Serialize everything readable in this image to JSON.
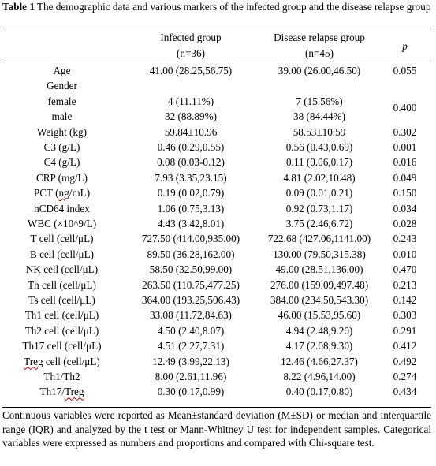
{
  "table": {
    "number": "Table 1",
    "title": "The demographic data and various markers of the infected group and the disease relapse group",
    "headers": {
      "col1_line1": "Infected group",
      "col1_line2": "(n=36)",
      "col2_line1": "Disease relapse group",
      "col2_line2": "(n=45)",
      "p": "p"
    },
    "rows": [
      {
        "label": "Age",
        "infected": "41.00 (28.25,56.75)",
        "relapse": "39.00 (26.00,46.50)",
        "p": "0.055"
      },
      {
        "label": "Gender",
        "infected": "",
        "relapse": "",
        "p": ""
      },
      {
        "label": "female",
        "infected": "4 (11.11%)",
        "relapse": "7 (15.56%)",
        "p": ""
      },
      {
        "label": "male",
        "infected": "32 (88.89%)",
        "relapse": "38 (84.44%)",
        "p": ""
      },
      {
        "label": "Weight (kg)",
        "infected": "59.84±10.96",
        "relapse": "58.53±10.59",
        "p": "0.302"
      },
      {
        "label": "C3 (g/L)",
        "infected": "0.46 (0.29,0.55)",
        "relapse": "0.56 (0.43,0.69)",
        "p": "0.001"
      },
      {
        "label": "C4 (g/L)",
        "infected": "0.08 (0.03-0.12)",
        "relapse": "0.11 (0.06,0.17)",
        "p": "0.016"
      },
      {
        "label": "CRP (mg/L)",
        "infected": "7.93 (3.35,23.15)",
        "relapse": "4.81 (2.02,10.48)",
        "p": "0.049"
      },
      {
        "label": "PCT (ng/mL)",
        "infected": "0.19 (0.02,0.79)",
        "relapse": "0.09 (0.01,0.21)",
        "p": "0.150"
      },
      {
        "label": "nCD64 index",
        "infected": "1.06 (0.75,3.13)",
        "relapse": "0.92 (0.73,1.17)",
        "p": "0.034"
      },
      {
        "label": "WBC (×10^9/L)",
        "infected": "4.43 (3.42,8.01)",
        "relapse": "3.75 (2.46,6.72)",
        "p": "0.028"
      },
      {
        "label": "T cell (cell/μL)",
        "infected": "727.50 (414.00,935.00)",
        "relapse": "722.68 (427.06,1141.00)",
        "p": "0.243"
      },
      {
        "label": "B cell (cell/μL)",
        "infected": "89.50 (36.28,162.00)",
        "relapse": "130.00 (79.50,315.38)",
        "p": "0.010"
      },
      {
        "label": "NK cell (cell/μL)",
        "infected": "58.50 (32.50,99.00)",
        "relapse": "49.00 (28.51,136.00)",
        "p": "0.470"
      },
      {
        "label": "Th cell (cell/μL)",
        "infected": "263.50 (110.75,477.25)",
        "relapse": "276.00 (159.09,497.48)",
        "p": "0.213"
      },
      {
        "label": "Ts cell (cell/μL)",
        "infected": "364.00 (193.25,506.43)",
        "relapse": "384.00 (234.50,543.30)",
        "p": "0.142"
      },
      {
        "label": "Th1 cell (cell/μL)",
        "infected": "33.08 (11.72,84.63)",
        "relapse": "46.00 (15.53,95.60)",
        "p": "0.303"
      },
      {
        "label": "Th2 cell (cell/μL)",
        "infected": "4.50 (2.40,8.07)",
        "relapse": "4.94 (2.48,9.20)",
        "p": "0.291"
      },
      {
        "label": "Th17 cell (cell/μL)",
        "infected": "4.51 (2.27,7.31)",
        "relapse": "4.17 (2.08,9.30)",
        "p": "0.412"
      },
      {
        "label": "Treg cell (cell/μL)",
        "infected": "12.49 (3.99,22.13)",
        "relapse": "12.46 (4.66,27.37)",
        "p": "0.492"
      },
      {
        "label": "Th1/Th2",
        "infected": "8.00 (2.61,11.96)",
        "relapse": "8.22 (4.96,14.00)",
        "p": "0.274"
      },
      {
        "label": "Th17/Treg",
        "infected": "0.30 (0.17,0.99)",
        "relapse": "0.40 (0.17,0.80)",
        "p": "0.434"
      }
    ],
    "gender_p": "0.400",
    "footnote": "Continuous variables were reported as Mean±standard deviation (M±SD) or median and interquartile range (IQR) and analyzed by the t test or Mann-Whitney U test for independent samples. Categorical variables were expressed as numbers and proportions and compared with Chi-square test."
  }
}
